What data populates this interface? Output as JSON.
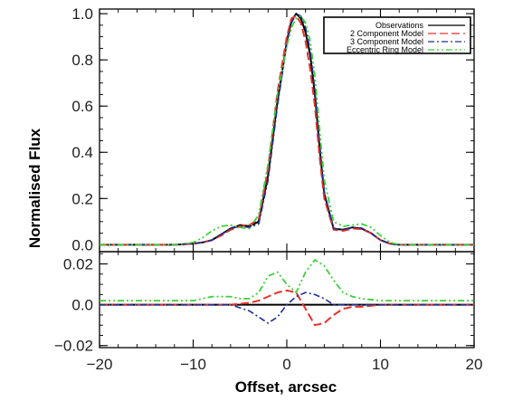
{
  "chart_data": [
    {
      "panel": "upper",
      "type": "line",
      "ylabel": "Normalised Flux",
      "xlim": [
        -20,
        20
      ],
      "ylim": [
        -0.03,
        1.02
      ],
      "yticks": [
        0.0,
        0.2,
        0.4,
        0.6,
        0.8,
        1.0
      ],
      "ytick_labels": [
        "0.0",
        "0.2",
        "0.4",
        "0.6",
        "0.8",
        "1.0"
      ],
      "legend_position": "top-right",
      "series": [
        {
          "name": "Observations",
          "color": "#000000",
          "dash": "solid",
          "x": [
            -20,
            -12,
            -10,
            -9,
            -8,
            -7,
            -6,
            -5,
            -4,
            -3,
            -2,
            -1,
            0,
            0.5,
            1,
            1.5,
            2,
            2.5,
            3,
            3.5,
            4,
            5,
            6,
            7,
            8,
            9,
            10,
            11,
            12,
            20
          ],
          "y": [
            0.0,
            0.0,
            0.005,
            0.01,
            0.02,
            0.045,
            0.07,
            0.085,
            0.08,
            0.1,
            0.3,
            0.62,
            0.88,
            0.97,
            1.0,
            0.98,
            0.92,
            0.82,
            0.65,
            0.42,
            0.22,
            0.07,
            0.065,
            0.075,
            0.07,
            0.05,
            0.02,
            0.005,
            0.0,
            0.0
          ]
        },
        {
          "name": "2 Component Model",
          "color": "#e8312a",
          "dash": "dashed",
          "x": [
            -20,
            -12,
            -10,
            -9,
            -8,
            -7,
            -6,
            -5,
            -4,
            -3,
            -2,
            -1,
            0,
            0.5,
            1,
            1.5,
            2,
            2.5,
            3,
            3.5,
            4,
            5,
            6,
            7,
            8,
            9,
            10,
            11,
            12,
            20
          ],
          "y": [
            0.0,
            0.0,
            0.004,
            0.01,
            0.02,
            0.04,
            0.065,
            0.08,
            0.085,
            0.11,
            0.33,
            0.66,
            0.9,
            0.98,
            0.99,
            0.96,
            0.88,
            0.76,
            0.6,
            0.38,
            0.2,
            0.065,
            0.06,
            0.07,
            0.068,
            0.05,
            0.02,
            0.005,
            0.0,
            0.0
          ]
        },
        {
          "name": "3 Component Model",
          "color": "#1f2f9a",
          "dash": "dashdot",
          "x": [
            -20,
            -12,
            -10,
            -9,
            -8,
            -7,
            -6,
            -5,
            -4,
            -3,
            -2,
            -1,
            0,
            0.5,
            1,
            1.5,
            2,
            2.5,
            3,
            3.5,
            4,
            5,
            6,
            7,
            8,
            9,
            10,
            11,
            12,
            20
          ],
          "y": [
            0.0,
            0.0,
            0.005,
            0.01,
            0.02,
            0.045,
            0.07,
            0.08,
            0.075,
            0.09,
            0.28,
            0.6,
            0.87,
            0.96,
            1.0,
            0.99,
            0.94,
            0.84,
            0.67,
            0.44,
            0.23,
            0.07,
            0.065,
            0.075,
            0.072,
            0.05,
            0.02,
            0.005,
            0.0,
            0.0
          ]
        },
        {
          "name": "Eccentric Ring Model",
          "color": "#3ccf3c",
          "dash": "dashdotdot",
          "x": [
            -20,
            -12,
            -10,
            -9,
            -8,
            -7,
            -6,
            -5,
            -4,
            -3,
            -2,
            -1,
            0,
            0.5,
            1,
            1.5,
            2,
            2.5,
            3,
            3.5,
            4,
            5,
            6,
            7,
            8,
            9,
            10,
            11,
            12,
            20
          ],
          "y": [
            0.0,
            0.0,
            0.01,
            0.03,
            0.06,
            0.08,
            0.085,
            0.075,
            0.07,
            0.13,
            0.35,
            0.65,
            0.86,
            0.94,
            0.98,
            0.99,
            0.96,
            0.88,
            0.73,
            0.5,
            0.28,
            0.1,
            0.08,
            0.085,
            0.09,
            0.075,
            0.04,
            0.01,
            0.0,
            0.0
          ]
        }
      ]
    },
    {
      "panel": "lower",
      "type": "line",
      "xlabel": "Offset, arcsec",
      "xlim": [
        -20,
        20
      ],
      "ylim": [
        -0.021,
        0.026
      ],
      "xticks": [
        -20,
        -10,
        0,
        10,
        20
      ],
      "xtick_labels": [
        "−20",
        "−10",
        "0",
        "10",
        "20"
      ],
      "yticks": [
        -0.02,
        0.0,
        0.02
      ],
      "ytick_labels": [
        "−0.02",
        "0.0",
        "0.02"
      ],
      "series": [
        {
          "name": "Observations",
          "color": "#000000",
          "dash": "solid",
          "x": [
            -20,
            20
          ],
          "y": [
            0.0,
            0.0
          ]
        },
        {
          "name": "2 Component Model",
          "color": "#e8312a",
          "dash": "dashed",
          "x": [
            -20,
            -10,
            -6,
            -4,
            -3,
            -2,
            -1,
            0,
            1,
            2,
            3,
            4,
            5,
            6,
            7,
            8,
            10,
            20
          ],
          "y": [
            0.0,
            0.0,
            0.0,
            0.001,
            0.002,
            0.004,
            0.006,
            0.007,
            0.006,
            -0.002,
            -0.01,
            -0.009,
            -0.005,
            -0.002,
            -0.001,
            -0.001,
            0.0,
            0.0
          ]
        },
        {
          "name": "3 Component Model",
          "color": "#1f2f9a",
          "dash": "dashdot",
          "x": [
            -20,
            -10,
            -6,
            -4,
            -3,
            -2,
            -1,
            0,
            1,
            2,
            3,
            4,
            5,
            6,
            7,
            8,
            10,
            20
          ],
          "y": [
            0.0,
            0.0,
            0.0,
            -0.003,
            -0.006,
            -0.009,
            -0.006,
            0.0,
            0.004,
            0.006,
            0.005,
            0.003,
            0.0,
            0.0,
            0.0,
            0.0,
            0.0,
            0.0
          ]
        },
        {
          "name": "Eccentric Ring Model",
          "color": "#3ccf3c",
          "dash": "dashdotdot",
          "x": [
            -20,
            -12,
            -10,
            -8,
            -6,
            -5,
            -4,
            -3,
            -2,
            -1,
            0,
            1,
            2,
            3,
            4,
            5,
            6,
            7,
            8,
            10,
            12,
            20
          ],
          "y": [
            0.002,
            0.002,
            0.002,
            0.004,
            0.004,
            0.003,
            0.003,
            0.006,
            0.014,
            0.016,
            0.01,
            0.006,
            0.016,
            0.022,
            0.019,
            0.012,
            0.006,
            0.004,
            0.003,
            0.002,
            0.002,
            0.002
          ]
        }
      ]
    }
  ]
}
